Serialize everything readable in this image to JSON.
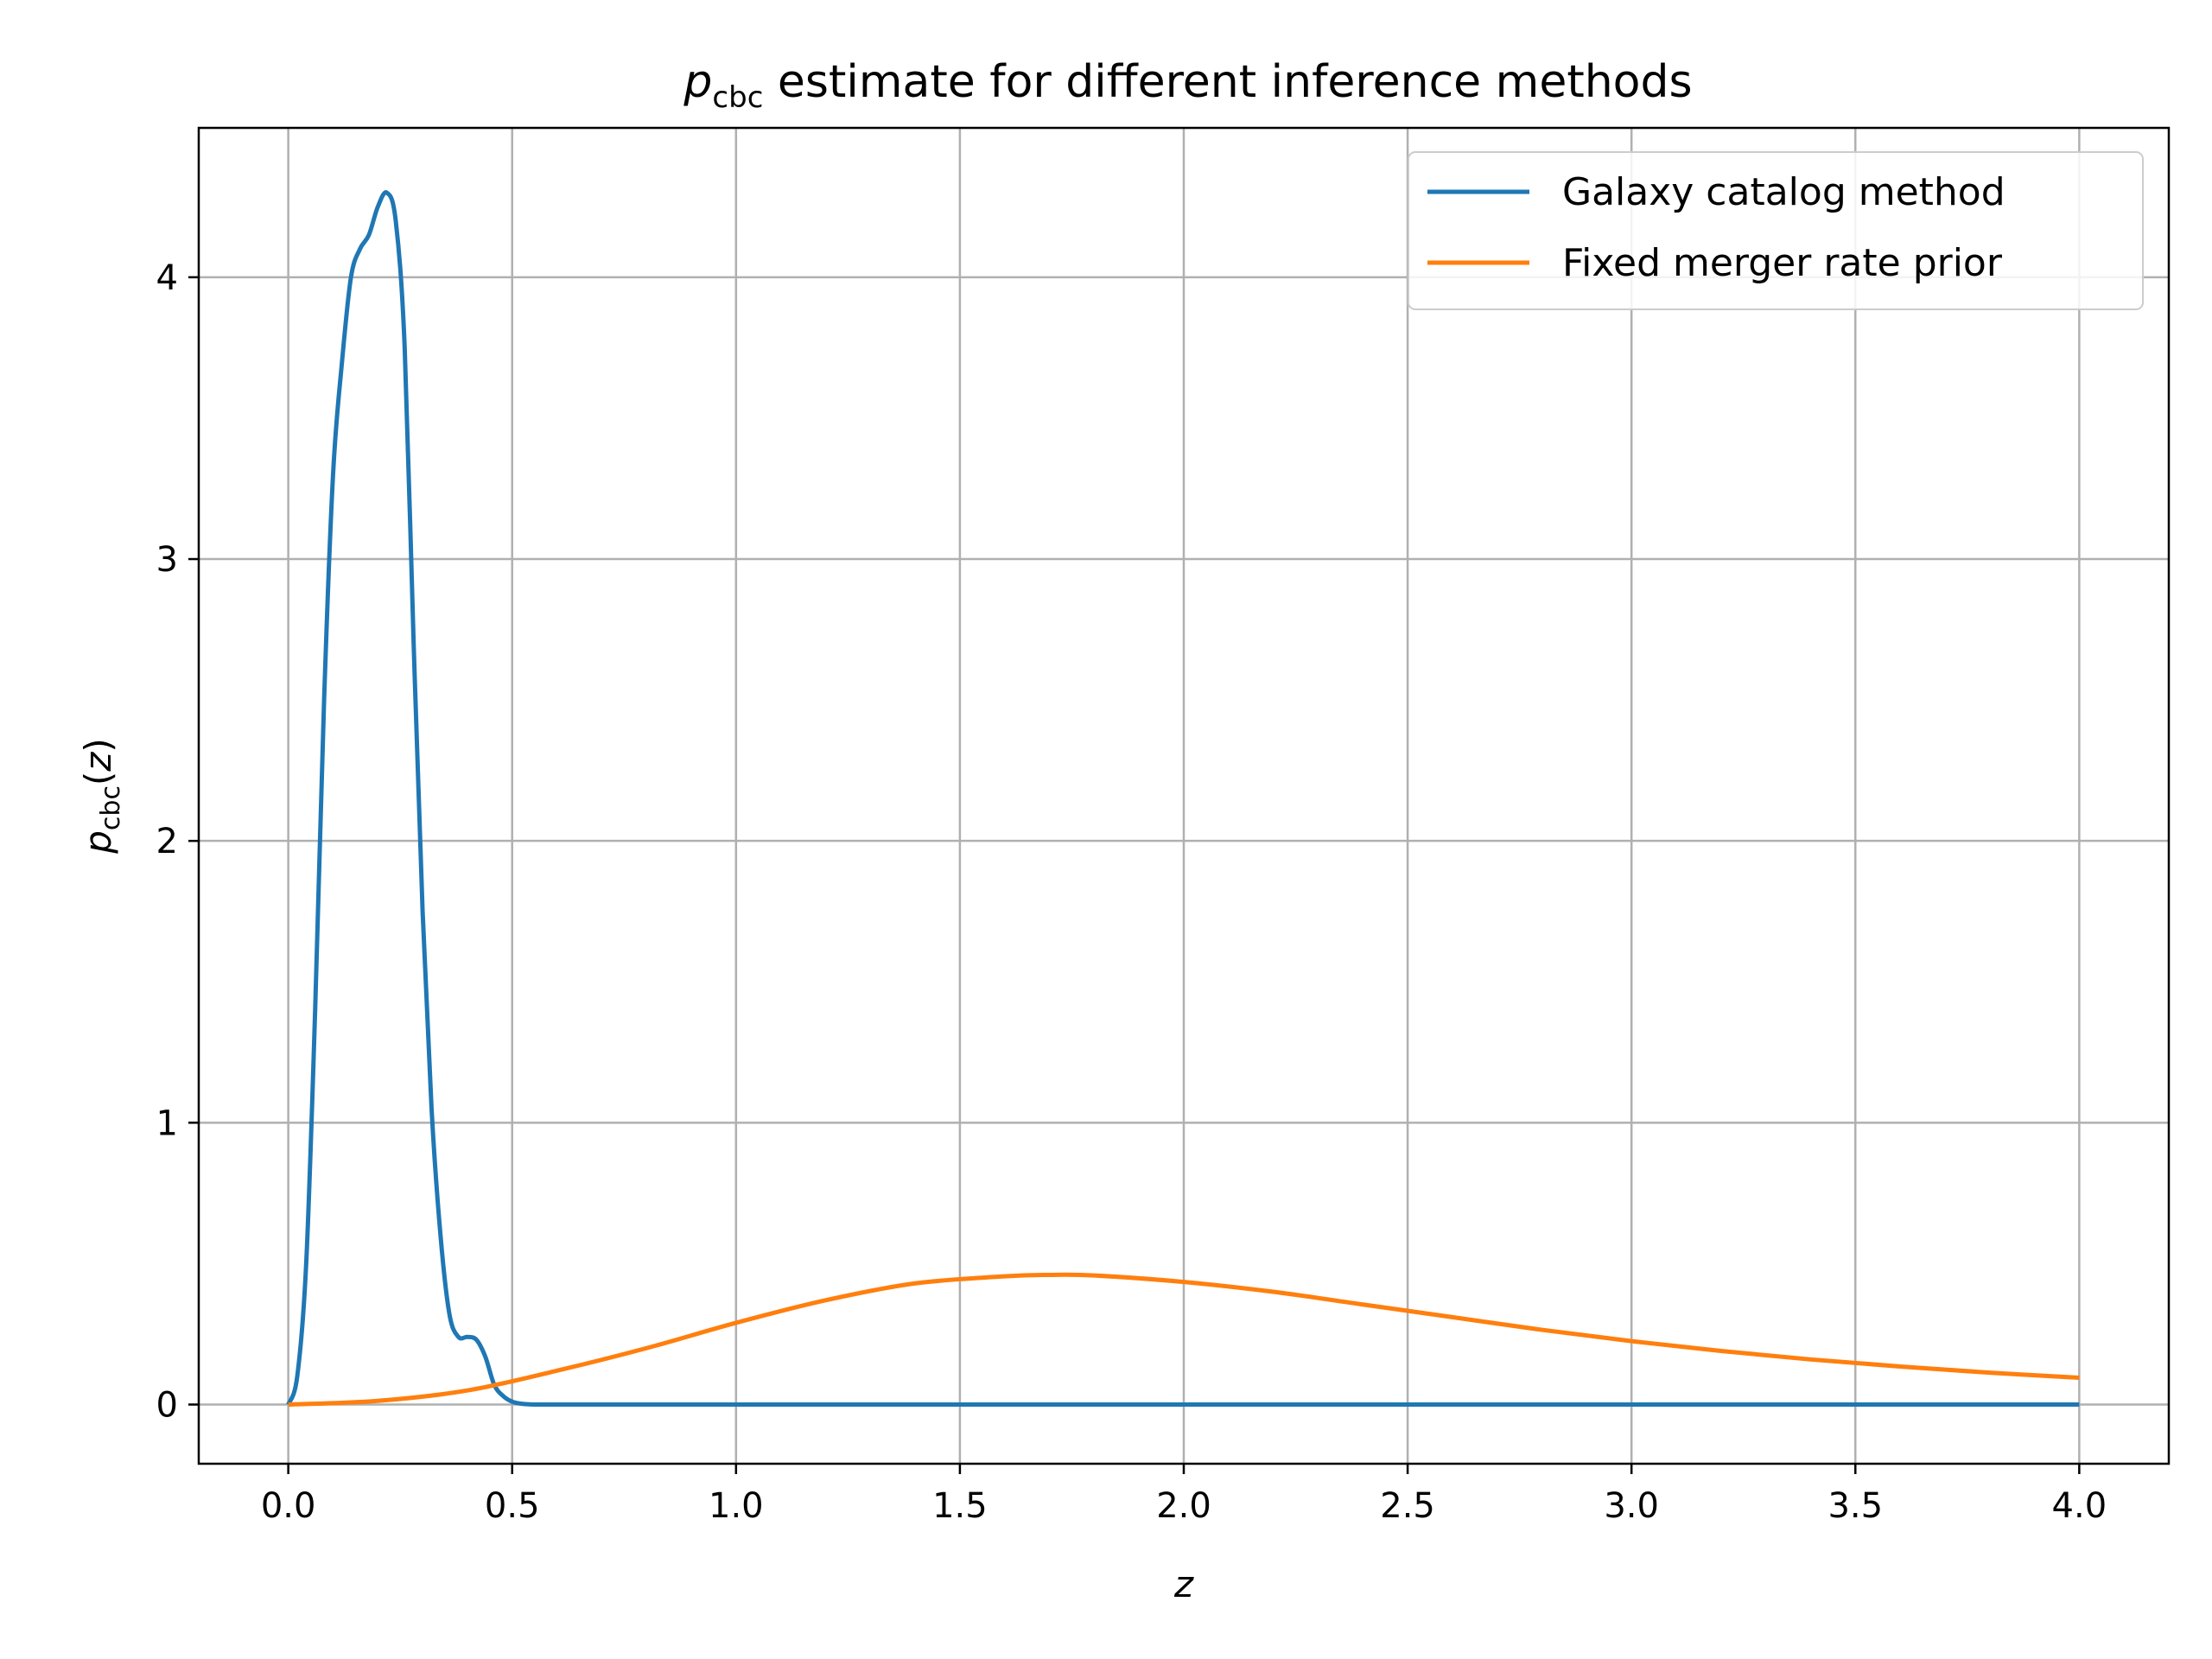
{
  "chart_data": {
    "type": "line",
    "title": {
      "symbol": "p",
      "subscript": "cbc",
      "rest": " estimate for different inference methods"
    },
    "xlabel": "z",
    "ylabel": {
      "symbol": "p",
      "subscript": "cbc",
      "rest": "(",
      "var": "z",
      "close": ")"
    },
    "xlim": [
      -0.2,
      4.2
    ],
    "ylim": [
      -0.21,
      4.53
    ],
    "xticks": [
      0.0,
      0.5,
      1.0,
      1.5,
      2.0,
      2.5,
      3.0,
      3.5,
      4.0
    ],
    "xtick_labels": [
      "0.0",
      "0.5",
      "1.0",
      "1.5",
      "2.0",
      "2.5",
      "3.0",
      "3.5",
      "4.0"
    ],
    "yticks": [
      0,
      1,
      2,
      3,
      4
    ],
    "ytick_labels": [
      "0",
      "1",
      "2",
      "3",
      "4"
    ],
    "grid": true,
    "legend_position": "top-right",
    "series": [
      {
        "name": "Galaxy catalog method",
        "color": "#1f77b4",
        "x": [
          0.0,
          0.02,
          0.04,
          0.06,
          0.08,
          0.1,
          0.12,
          0.14,
          0.16,
          0.18,
          0.2,
          0.22,
          0.24,
          0.26,
          0.28,
          0.3,
          0.32,
          0.34,
          0.36,
          0.38,
          0.4,
          0.42,
          0.44,
          0.46,
          0.48,
          0.5,
          0.52,
          0.55,
          0.6,
          1.0,
          1.5,
          2.0,
          2.5,
          3.0,
          3.5,
          4.0
        ],
        "y": [
          0.0,
          0.1,
          0.5,
          1.4,
          2.5,
          3.3,
          3.7,
          4.0,
          4.1,
          4.15,
          4.25,
          4.3,
          4.2,
          3.75,
          2.7,
          1.75,
          1.05,
          0.6,
          0.32,
          0.24,
          0.24,
          0.23,
          0.17,
          0.07,
          0.03,
          0.01,
          0.003,
          0.0,
          0.0,
          0.0,
          0.0,
          0.0,
          0.0,
          0.0,
          0.0,
          0.0
        ]
      },
      {
        "name": "Fixed merger rate prior",
        "color": "#ff7f0e",
        "x": [
          0.0,
          0.2,
          0.4,
          0.6,
          0.8,
          1.0,
          1.2,
          1.4,
          1.6,
          1.7,
          1.8,
          2.0,
          2.2,
          2.4,
          2.6,
          2.8,
          3.0,
          3.2,
          3.4,
          3.6,
          3.8,
          4.0
        ],
        "y": [
          0.0,
          0.013,
          0.05,
          0.12,
          0.2,
          0.29,
          0.37,
          0.43,
          0.455,
          0.46,
          0.458,
          0.435,
          0.4,
          0.355,
          0.31,
          0.265,
          0.225,
          0.19,
          0.16,
          0.135,
          0.113,
          0.095
        ]
      }
    ]
  }
}
